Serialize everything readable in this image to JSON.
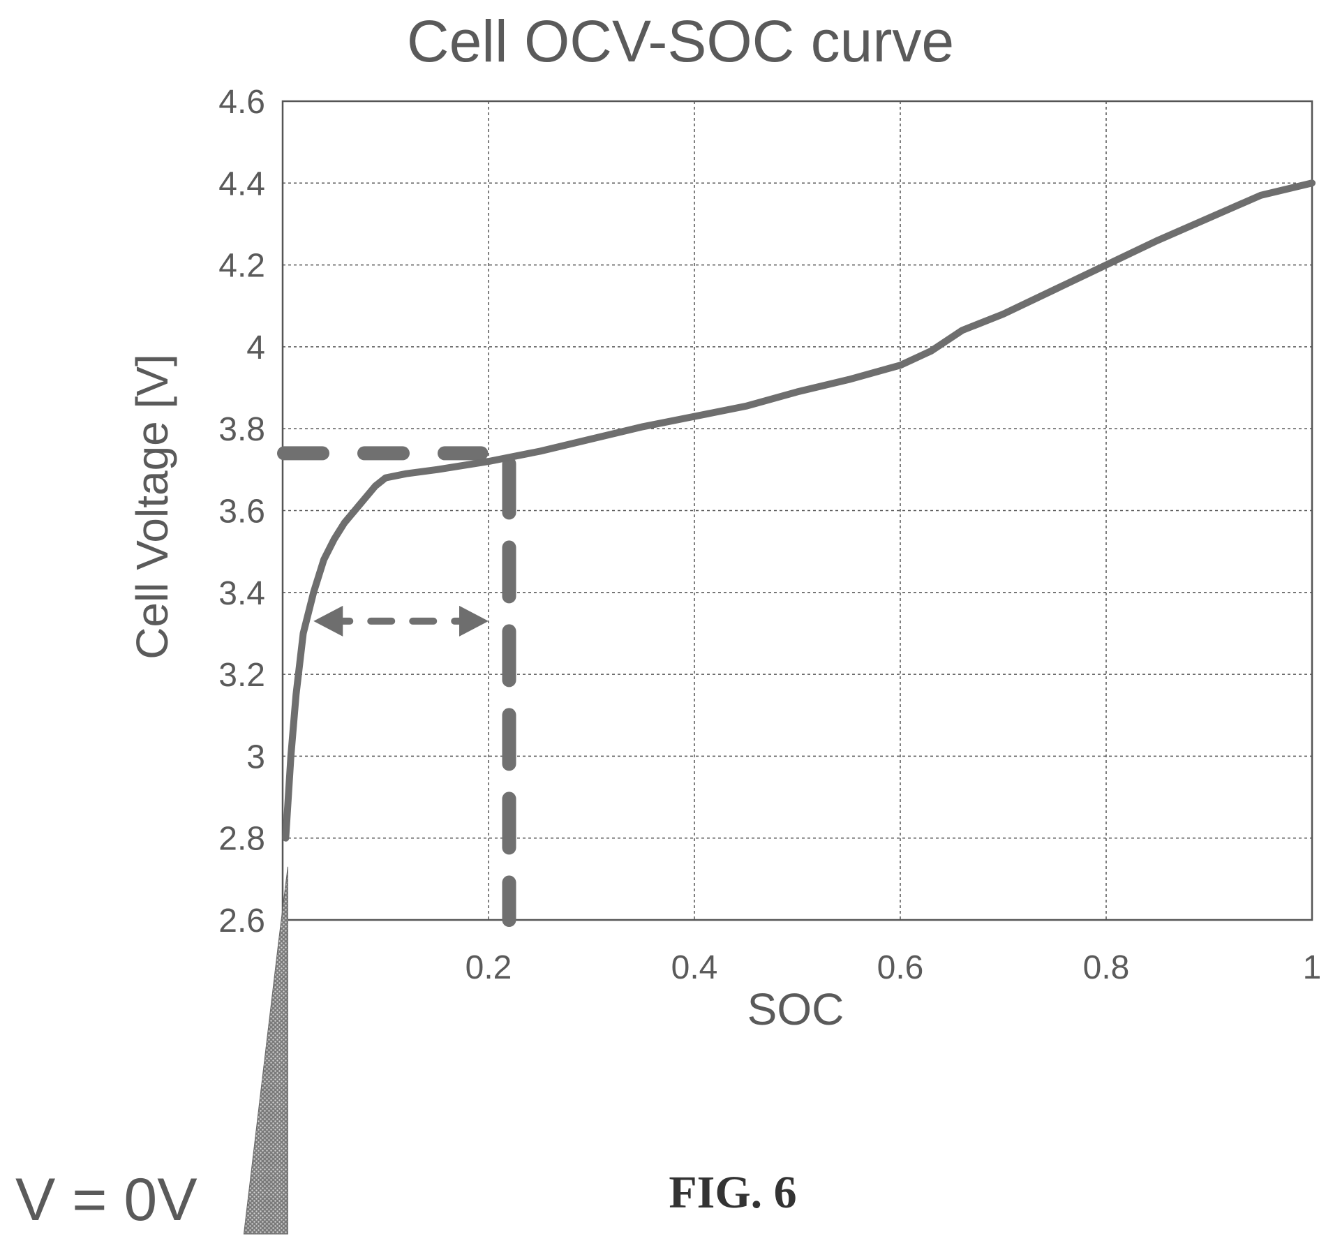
{
  "chart_data": {
    "type": "line",
    "title": "Cell OCV-SOC curve",
    "xlabel": "SOC",
    "ylabel": "Cell Voltage [V]",
    "xlim": [
      0,
      1
    ],
    "ylim": [
      2.6,
      4.6
    ],
    "grid": true,
    "xticks": [
      0.2,
      0.4,
      0.6,
      0.8,
      1
    ],
    "xtick_labels": [
      "0.2",
      "0.4",
      "0.6",
      "0.8",
      "1"
    ],
    "yticks": [
      2.6,
      2.8,
      3.0,
      3.2,
      3.4,
      3.6,
      3.8,
      4.0,
      4.2,
      4.4,
      4.6
    ],
    "ytick_labels": [
      "2.6",
      "2.8",
      "3",
      "3.2",
      "3.4",
      "3.6",
      "3.8",
      "4",
      "4.2",
      "4.4",
      "4.6"
    ],
    "series": [
      {
        "x": [
          0.003,
          0.008,
          0.013,
          0.02,
          0.03,
          0.04,
          0.05,
          0.06,
          0.07,
          0.08,
          0.09,
          0.1,
          0.12,
          0.15,
          0.2,
          0.25,
          0.3,
          0.35,
          0.4,
          0.45,
          0.5,
          0.55,
          0.6,
          0.63,
          0.66,
          0.7,
          0.75,
          0.8,
          0.85,
          0.9,
          0.95,
          1.0
        ],
        "y": [
          2.8,
          3.0,
          3.15,
          3.3,
          3.4,
          3.48,
          3.53,
          3.57,
          3.6,
          3.63,
          3.66,
          3.68,
          3.69,
          3.7,
          3.72,
          3.745,
          3.775,
          3.805,
          3.83,
          3.855,
          3.89,
          3.92,
          3.955,
          3.99,
          4.04,
          4.08,
          4.14,
          4.2,
          4.26,
          4.315,
          4.37,
          4.4
        ]
      }
    ],
    "annotations": {
      "low_voltage_label": "V = 0V",
      "reference_voltage": 3.74,
      "reference_soc": 0.22,
      "range_arrow": {
        "x_from": 0.03,
        "x_to": 0.2,
        "y": 3.33
      }
    }
  },
  "figure_caption": "FIG. 6"
}
